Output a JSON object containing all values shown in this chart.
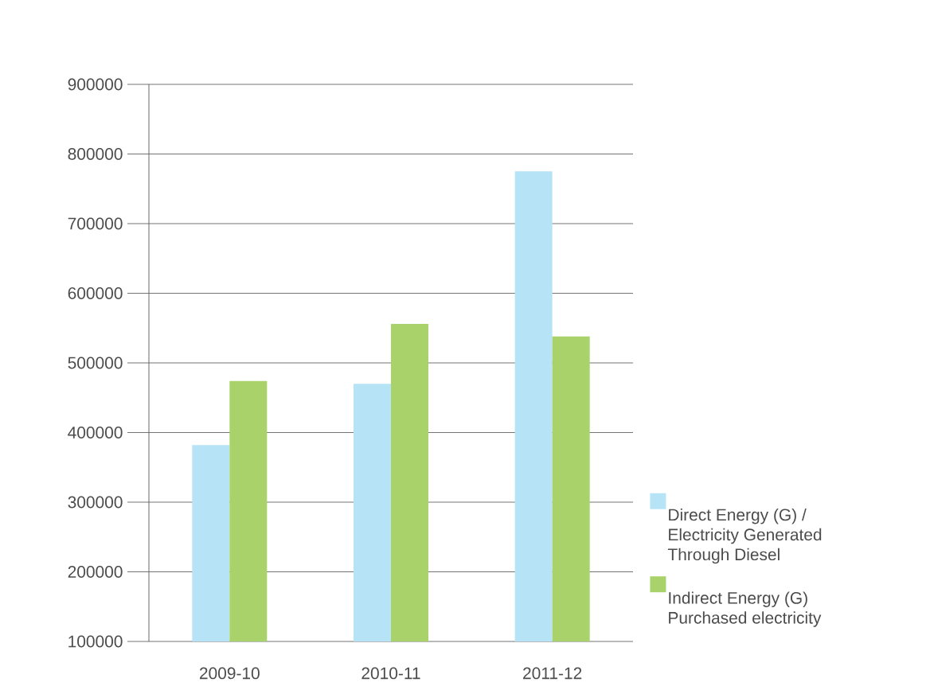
{
  "chart_data": {
    "type": "bar",
    "categories": [
      "2009-10",
      "2010-11",
      "2011-12"
    ],
    "series": [
      {
        "name": "Direct Energy (G) / Electricity Generated Through Diesel",
        "color": "#b7e3f7",
        "values": [
          382000,
          470000,
          775000
        ]
      },
      {
        "name": "Indirect Energy (G) Purchased electricity",
        "color": "#a9d26a",
        "values": [
          474000,
          556000,
          538000
        ]
      }
    ],
    "ylim": [
      100000,
      900000
    ],
    "yticks": [
      100000,
      200000,
      300000,
      400000,
      500000,
      600000,
      700000,
      800000,
      900000
    ],
    "grid": "y",
    "legend": "right"
  }
}
